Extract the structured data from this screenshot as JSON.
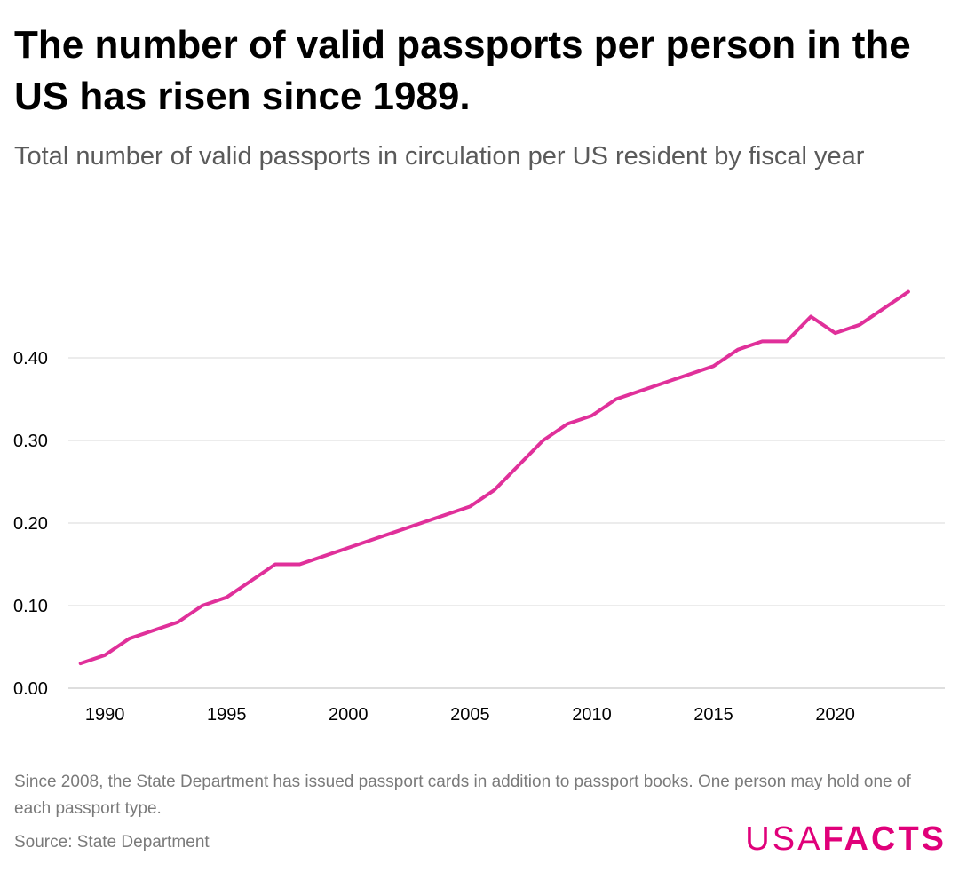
{
  "title": "The number of valid passports per person in the US has risen since 1989.",
  "subtitle": "Total number of valid passports in circulation per US resident by fiscal year",
  "footnote": "Since 2008, the State Department has issued passport cards in addition to passport books. One person may hold one of each passport type.",
  "source": "Source: State Department",
  "logo": {
    "usa": "USA",
    "facts": "FACTS",
    "color": "#e0007a"
  },
  "line_color": "#e0309a",
  "chart_data": {
    "type": "line",
    "title": "",
    "xlabel": "",
    "ylabel": "",
    "x_ticks": [
      1990,
      1995,
      2000,
      2005,
      2010,
      2015,
      2020
    ],
    "y_ticks": [
      "0.00",
      "0.10",
      "0.20",
      "0.30",
      "0.40"
    ],
    "xlim": [
      1988.5,
      2024.5
    ],
    "ylim": [
      0,
      0.5
    ],
    "grid": "horizontal",
    "series": [
      {
        "x": [
          1989,
          1990,
          1991,
          1992,
          1993,
          1994,
          1995,
          1996,
          1997,
          1998,
          1999,
          2000,
          2001,
          2002,
          2003,
          2004,
          2005,
          2006,
          2007,
          2008,
          2009,
          2010,
          2011,
          2012,
          2013,
          2014,
          2015,
          2016,
          2017,
          2018,
          2019,
          2020,
          2021,
          2022,
          2023
        ],
        "values": [
          0.03,
          0.04,
          0.06,
          0.07,
          0.08,
          0.1,
          0.11,
          0.13,
          0.15,
          0.15,
          0.16,
          0.17,
          0.18,
          0.19,
          0.2,
          0.21,
          0.22,
          0.24,
          0.27,
          0.3,
          0.32,
          0.33,
          0.35,
          0.36,
          0.37,
          0.38,
          0.39,
          0.41,
          0.42,
          0.42,
          0.45,
          0.43,
          0.44,
          0.46,
          0.48
        ]
      }
    ]
  }
}
